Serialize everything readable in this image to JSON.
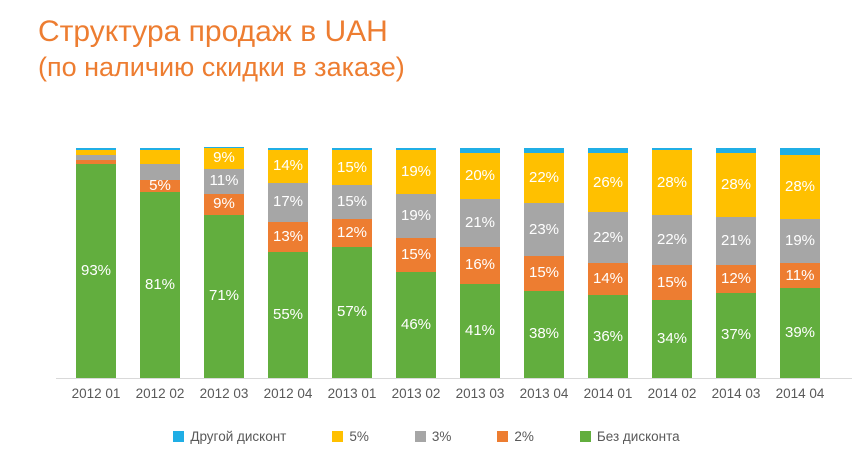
{
  "title": {
    "line1": "Структура продаж в UAH",
    "line2": "(по наличию скидки в заказе)"
  },
  "colors": {
    "title": "#ED7D31",
    "green": "#62AE3E",
    "orange": "#ED7D31",
    "gray": "#A6A6A6",
    "yellow": "#FFC000",
    "blue": "#20AEE5",
    "axis_text": "#595959",
    "axis_line": "#D9D9D9",
    "data_label": "#FFFFFF"
  },
  "chart_data": {
    "type": "bar",
    "stacked": true,
    "units": "percent",
    "ylim": [
      0,
      100
    ],
    "grid": false,
    "legend_position": "bottom",
    "title": "Структура продаж в UAH (по наличию скидки в заказе)",
    "categories": [
      "2012 01",
      "2012 02",
      "2012 03",
      "2012 04",
      "2013 01",
      "2013 02",
      "2013 03",
      "2013 04",
      "2014 01",
      "2014 02",
      "2014 03",
      "2014 04"
    ],
    "series": [
      {
        "name": "Без дисконта",
        "color_key": "green",
        "values": [
          93,
          81,
          71,
          55,
          57,
          46,
          41,
          38,
          36,
          34,
          37,
          39
        ],
        "labels": [
          "93%",
          "81%",
          "71%",
          "55%",
          "57%",
          "46%",
          "41%",
          "38%",
          "36%",
          "34%",
          "37%",
          "39%"
        ]
      },
      {
        "name": "2%",
        "color_key": "orange",
        "values": [
          2,
          5,
          9,
          13,
          12,
          15,
          16,
          15,
          14,
          15,
          12,
          11
        ],
        "labels": [
          "",
          "5%",
          "9%",
          "13%",
          "12%",
          "15%",
          "16%",
          "15%",
          "14%",
          "15%",
          "12%",
          "11%"
        ]
      },
      {
        "name": "3%",
        "color_key": "gray",
        "values": [
          2,
          7,
          11,
          17,
          15,
          19,
          21,
          23,
          22,
          22,
          21,
          19
        ],
        "labels": [
          "",
          "",
          "11%",
          "17%",
          "15%",
          "19%",
          "21%",
          "23%",
          "22%",
          "22%",
          "21%",
          "19%"
        ]
      },
      {
        "name": "5%",
        "color_key": "yellow",
        "values": [
          2,
          6,
          9,
          14,
          15,
          19,
          20,
          22,
          26,
          28,
          28,
          28
        ],
        "labels": [
          "",
          "",
          "9%",
          "14%",
          "15%",
          "19%",
          "20%",
          "22%",
          "26%",
          "28%",
          "28%",
          "28%"
        ]
      },
      {
        "name": "Другой дисконт",
        "color_key": "blue",
        "values": [
          1,
          1,
          0.5,
          1,
          1,
          1,
          2,
          2,
          2,
          1,
          2,
          3
        ],
        "labels": [
          "",
          "",
          "",
          "",
          "",
          "",
          "",
          "",
          "",
          "",
          "",
          ""
        ]
      }
    ],
    "legend": [
      {
        "label": "Другой дисконт",
        "color_key": "blue"
      },
      {
        "label": "5%",
        "color_key": "yellow"
      },
      {
        "label": "3%",
        "color_key": "gray"
      },
      {
        "label": "2%",
        "color_key": "orange"
      },
      {
        "label": "Без дисконта",
        "color_key": "green"
      }
    ]
  }
}
